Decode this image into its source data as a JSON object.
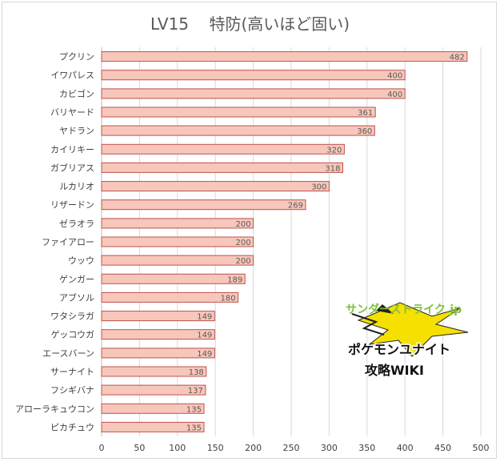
{
  "chart_data": {
    "type": "bar",
    "orientation": "horizontal",
    "title": "LV15    特防(高いほど固い)",
    "categories": [
      "プクリン",
      "イワパレス",
      "カビゴン",
      "バリヤード",
      "ヤドラン",
      "カイリキー",
      "ガブリアス",
      "ルカリオ",
      "リザードン",
      "ゼラオラ",
      "ファイアロー",
      "ウッウ",
      "ゲンガー",
      "アブソル",
      "ワタシラガ",
      "ゲッコウガ",
      "エースバーン",
      "サーナイト",
      "フシギバナ",
      "アローラキュウコン",
      "ピカチュウ"
    ],
    "values": [
      482,
      400,
      400,
      361,
      360,
      320,
      318,
      300,
      269,
      200,
      200,
      200,
      189,
      180,
      149,
      149,
      149,
      138,
      137,
      135,
      135
    ],
    "xlim": [
      0,
      500
    ],
    "xticks": [
      "0",
      "50",
      "100",
      "150",
      "200",
      "250",
      "300",
      "350",
      "400",
      "450",
      "500"
    ],
    "grid": true,
    "legend": "none",
    "bar_color": "#f7c7bb",
    "bar_edge_color": "#c0504d",
    "data_labels": true
  },
  "watermark": {
    "line1": "サンダーストライク.jp",
    "line2": "ポケモンユナイト",
    "line3": "攻略WIKI",
    "line1_color": "#7ec03a",
    "bolt_color": "#f5e000"
  }
}
